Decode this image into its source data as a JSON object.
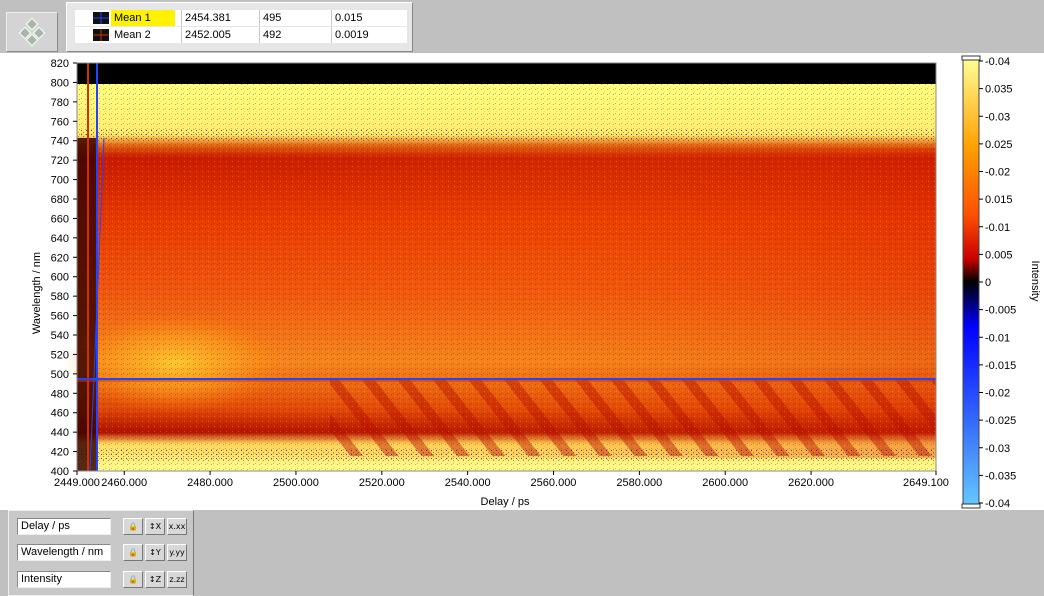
{
  "cursor_table": {
    "rows": [
      {
        "name": "Mean 1",
        "x": "2454.381",
        "y": "495",
        "z": "0.015",
        "color": "#2244ff"
      },
      {
        "name": "Mean 2",
        "x": "2452.005",
        "y": "492",
        "z": "0.0019",
        "color": "#cc3300"
      }
    ]
  },
  "axes": {
    "xlabel": "Delay / ps",
    "ylabel": "Wavelength / nm",
    "zlabel": "Intensity",
    "x_ticks": [
      "2449.000",
      "2460.000",
      "2480.000",
      "2500.000",
      "2520.000",
      "2540.000",
      "2560.000",
      "2580.000",
      "2600.000",
      "2620.000",
      "2649.100"
    ],
    "y_ticks": [
      "820",
      "800",
      "780",
      "760",
      "740",
      "720",
      "700",
      "680",
      "660",
      "640",
      "620",
      "600",
      "580",
      "560",
      "540",
      "520",
      "500",
      "480",
      "460",
      "440",
      "420",
      "400"
    ],
    "z_ticks": [
      "-0.04",
      "0.035",
      "-0.03",
      "0.025",
      "-0.02",
      "0.015",
      "-0.01",
      "0.005",
      "0",
      "-0.005",
      "-0.01",
      "-0.015",
      "-0.02",
      "-0.025",
      "-0.03",
      "-0.035",
      "-0.04"
    ]
  },
  "chart_data": {
    "type": "heatmap",
    "xlabel": "Delay / ps",
    "ylabel": "Wavelength / nm",
    "zlabel": "Intensity",
    "xlim": [
      2449.0,
      2649.1
    ],
    "ylim": [
      400,
      820
    ],
    "zlim": [
      -0.04,
      0.04
    ],
    "colormap": [
      "#64c8ff",
      "#0000ff",
      "#000000",
      "#c80000",
      "#ff5000",
      "#ffa000",
      "#ffff96"
    ],
    "cursors": [
      {
        "name": "Mean 1",
        "x": 2454.381,
        "y": 495,
        "color": "#2244ff"
      },
      {
        "name": "Mean 2",
        "x": 2452.005,
        "y": 492,
        "color": "#cc3300"
      }
    ]
  },
  "scale_legend": {
    "rows": [
      {
        "name": "Delay / ps",
        "format_glyph": "x.xx"
      },
      {
        "name": "Wavelength / nm",
        "format_glyph": "y.yy"
      },
      {
        "name": "Intensity",
        "format_glyph": "z.zz"
      }
    ]
  }
}
